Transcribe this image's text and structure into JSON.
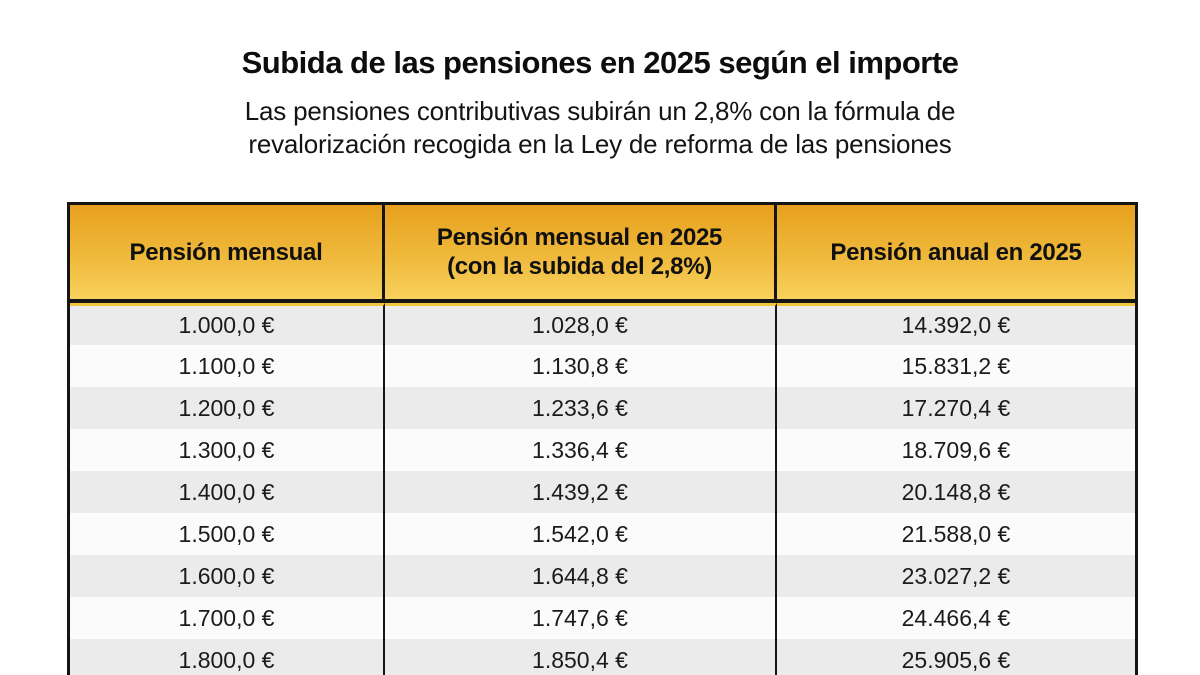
{
  "header": {
    "title": "Subida de las pensiones en 2025 según el importe",
    "subtitle": "Las pensiones contributivas subirán un 2,8% con la fórmula de\nrevalorización recogida en la Ley de reforma de las pensiones",
    "increase_percent": "2,8%"
  },
  "table": {
    "columns": [
      "Pensión mensual",
      "Pensión mensual en 2025\n(con la subida del 2,8%)",
      "Pensión anual en 2025"
    ],
    "rows": [
      [
        "1.000,0 €",
        "1.028,0 €",
        "14.392,0 €"
      ],
      [
        "1.100,0 €",
        "1.130,8 €",
        "15.831,2 €"
      ],
      [
        "1.200,0 €",
        "1.233,6 €",
        "17.270,4 €"
      ],
      [
        "1.300,0 €",
        "1.336,4 €",
        "18.709,6 €"
      ],
      [
        "1.400,0 €",
        "1.439,2 €",
        "20.148,8 €"
      ],
      [
        "1.500,0 €",
        "1.542,0 €",
        "21.588,0 €"
      ],
      [
        "1.600,0 €",
        "1.644,8 €",
        "23.027,2 €"
      ],
      [
        "1.700,0 €",
        "1.747,6 €",
        "24.466,4 €"
      ],
      [
        "1.800,0 €",
        "1.850,4 €",
        "25.905,6 €"
      ]
    ]
  },
  "colors": {
    "header_gradient_top": "#E7A01E",
    "header_gradient_bottom": "#F8D15C",
    "accent_stripe": "#F2C53E",
    "row_odd": "#EBEBEB",
    "row_even": "#FBFBFB",
    "border": "#151515",
    "text": "#111111"
  },
  "chart_data": {
    "type": "table",
    "title": "Subida de las pensiones en 2025 según el importe",
    "subtitle": "Las pensiones contributivas subirán un 2,8% con la fórmula de revalorización recogida en la Ley de reforma de las pensiones",
    "columns": [
      "Pensión mensual",
      "Pensión mensual en 2025 (con la subida del 2,8%)",
      "Pensión anual en 2025"
    ],
    "rows": [
      [
        "1.000,0 €",
        "1.028,0 €",
        "14.392,0 €"
      ],
      [
        "1.100,0 €",
        "1.130,8 €",
        "15.831,2 €"
      ],
      [
        "1.200,0 €",
        "1.233,6 €",
        "17.270,4 €"
      ],
      [
        "1.300,0 €",
        "1.336,4 €",
        "18.709,6 €"
      ],
      [
        "1.400,0 €",
        "1.439,2 €",
        "20.148,8 €"
      ],
      [
        "1.500,0 €",
        "1.542,0 €",
        "21.588,0 €"
      ],
      [
        "1.600,0 €",
        "1.644,8 €",
        "23.027,2 €"
      ],
      [
        "1.700,0 €",
        "1.747,6 €",
        "24.466,4 €"
      ],
      [
        "1.800,0 €",
        "1.850,4 €",
        "25.905,6 €"
      ]
    ],
    "increase_percent": "2,8%"
  }
}
